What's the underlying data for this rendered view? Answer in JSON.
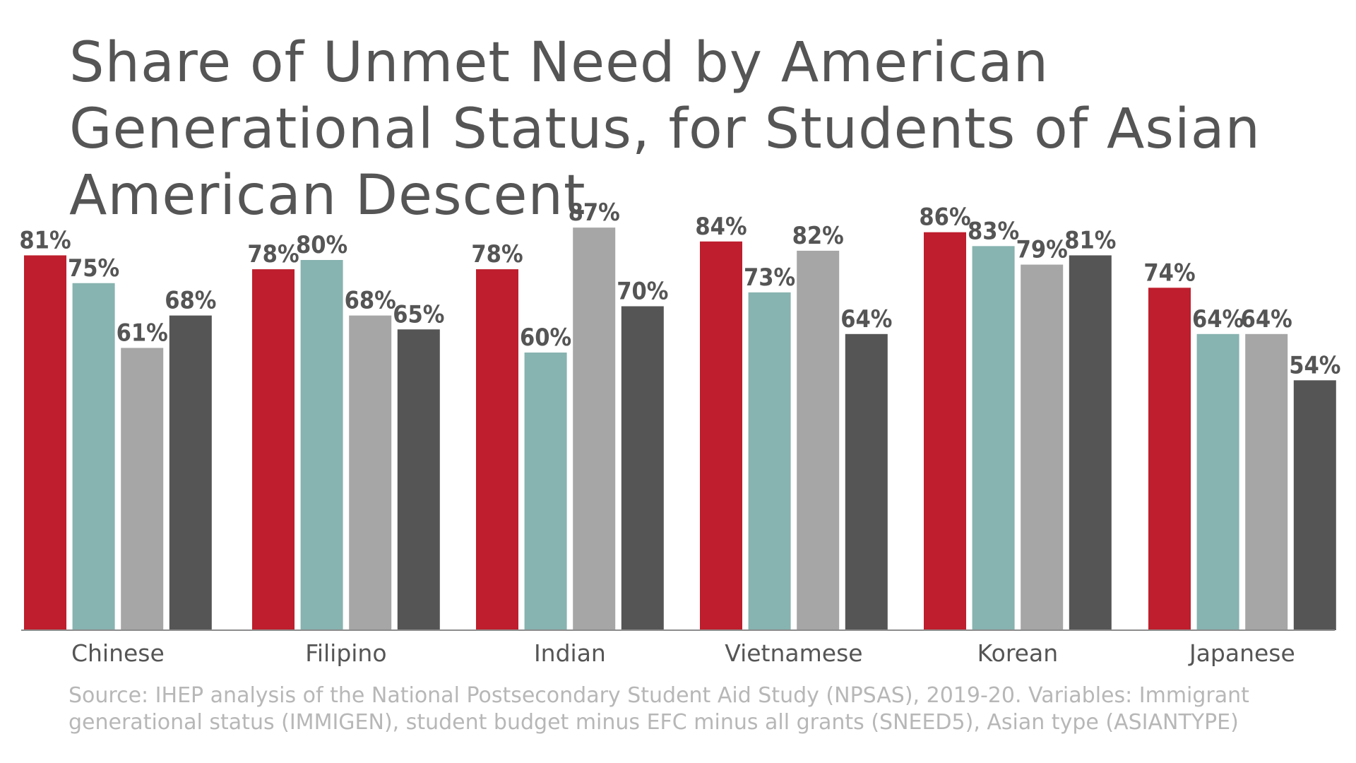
{
  "title": "Share of Unmet Need by American Generational Status, for Students of Asian American Descent",
  "source": "Source: IHEP analysis of the National Postsecondary Student Aid Study (NPSAS), 2019-20. Variables: Immigrant generational status (IMMIGEN), student budget minus EFC minus all grants (SNEED5), Asian type (ASIANTYPE)",
  "chart_data": {
    "type": "bar",
    "title": "Share of Unmet Need by American Generational Status, for Students of Asian American Descent",
    "xlabel": "",
    "ylabel": "",
    "ylim": [
      0,
      100
    ],
    "grid": false,
    "legend": "none",
    "categories": [
      "Chinese",
      "Filipino",
      "Indian",
      "Vietnamese",
      "Korean",
      "Japanese"
    ],
    "series": [
      {
        "color": "#be1e2d",
        "values": [
          81,
          78,
          78,
          84,
          86,
          74
        ],
        "labels": [
          "81%",
          "78%",
          "78%",
          "84%",
          "86%",
          "74%"
        ]
      },
      {
        "color": "#87b3b0",
        "values": [
          75,
          80,
          60,
          73,
          83,
          64
        ],
        "labels": [
          "75%",
          "80%",
          "60%",
          "73%",
          "83%",
          "64%"
        ]
      },
      {
        "color": "#a6a6a6",
        "values": [
          61,
          68,
          87,
          82,
          79,
          64
        ],
        "labels": [
          "61%",
          "68%",
          "87%",
          "82%",
          "79%",
          "64%"
        ]
      },
      {
        "color": "#555555",
        "values": [
          68,
          65,
          70,
          64,
          81,
          54
        ],
        "labels": [
          "68%",
          "65%",
          "70%",
          "64%",
          "81%",
          "54%"
        ]
      }
    ]
  }
}
